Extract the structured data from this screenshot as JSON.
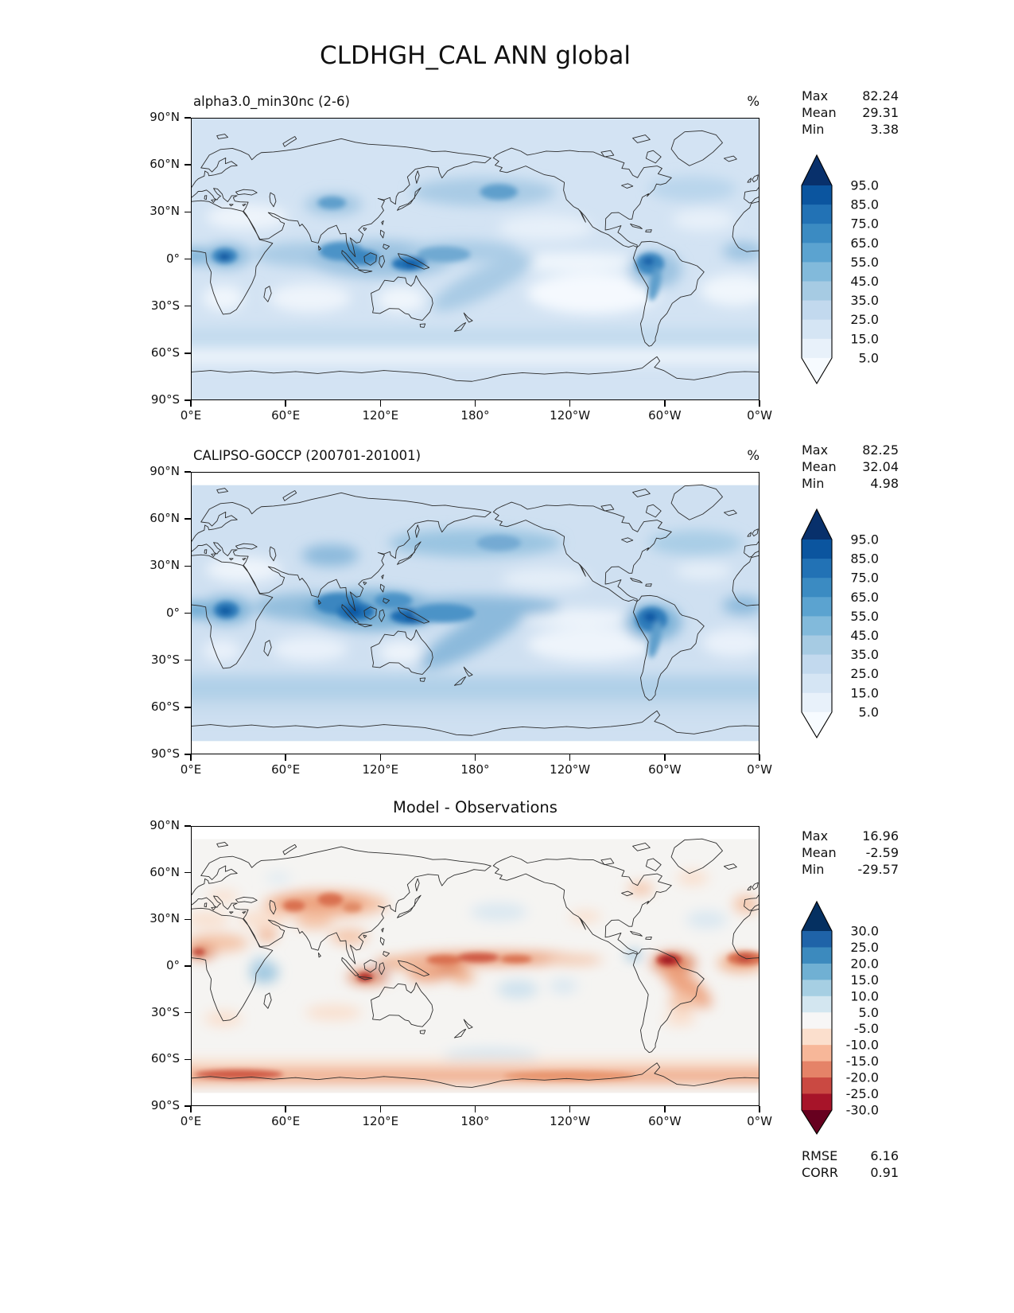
{
  "page_title": "CLDHGH_CAL ANN global",
  "axes": {
    "x_ticks": [
      "0°E",
      "60°E",
      "120°E",
      "180°",
      "120°W",
      "60°W",
      "0°W"
    ],
    "y_ticks": [
      "90°N",
      "60°N",
      "30°N",
      "0°",
      "30°S",
      "60°S",
      "90°S"
    ]
  },
  "panels": [
    {
      "key": "model",
      "title": "alpha3.0_min30nc (2-6)",
      "unit": "%",
      "stats": [
        [
          "Max",
          "82.24"
        ],
        [
          "Mean",
          "29.31"
        ],
        [
          "Min",
          "3.38"
        ]
      ],
      "colorbar": {
        "tick_labels": [
          "95.0",
          "85.0",
          "75.0",
          "65.0",
          "55.0",
          "45.0",
          "35.0",
          "25.0",
          "15.0",
          "5.0"
        ],
        "colors_top_to_bottom": [
          "#08306b",
          "#0b559f",
          "#2272b5",
          "#3b8bc2",
          "#5ba3d0",
          "#82badb",
          "#a6cbe3",
          "#c2d9ee",
          "#d5e5f4",
          "#e8f1fa",
          "#f7fbff"
        ]
      }
    },
    {
      "key": "obs",
      "title": "CALIPSO-GOCCP (200701-201001)",
      "unit": "%",
      "stats": [
        [
          "Max",
          "82.25"
        ],
        [
          "Mean",
          "32.04"
        ],
        [
          "Min",
          "4.98"
        ]
      ],
      "colorbar": {
        "tick_labels": [
          "95.0",
          "85.0",
          "75.0",
          "65.0",
          "55.0",
          "45.0",
          "35.0",
          "25.0",
          "15.0",
          "5.0"
        ],
        "colors_top_to_bottom": [
          "#08306b",
          "#0b559f",
          "#2272b5",
          "#3b8bc2",
          "#5ba3d0",
          "#82badb",
          "#a6cbe3",
          "#c2d9ee",
          "#d5e5f4",
          "#e8f1fa",
          "#f7fbff"
        ]
      }
    },
    {
      "key": "diff",
      "title": "Model - Observations",
      "unit": "",
      "stats": [
        [
          "Max",
          "16.96"
        ],
        [
          "Mean",
          "-2.59"
        ],
        [
          "Min",
          "-29.57"
        ]
      ],
      "extra_stats": [
        [
          "RMSE",
          "6.16"
        ],
        [
          "CORR",
          "0.91"
        ]
      ],
      "colorbar": {
        "tick_labels": [
          "30.0",
          "25.0",
          "20.0",
          "15.0",
          "10.0",
          "5.0",
          "-5.0",
          "-10.0",
          "-15.0",
          "-20.0",
          "-25.0",
          "-30.0"
        ],
        "colors_top_to_bottom": [
          "#053061",
          "#1f63a8",
          "#3c8abe",
          "#70b0d3",
          "#a6cfe3",
          "#d3e6f0",
          "#f7f6f6",
          "#fbdfcd",
          "#f7b799",
          "#e58368",
          "#ca4942",
          "#a71429",
          "#67001f"
        ]
      }
    }
  ],
  "chart_data": {
    "type": "heatmap",
    "title": "CLDHGH_CAL ANN global",
    "variable": "CLDHGH_CAL",
    "season": "ANN",
    "region": "global",
    "projection": "equirectangular, longitude 0°E to 0°W (0-360), latitude 90°N to 90°S",
    "x_tick_labels": [
      "0°E",
      "60°E",
      "120°E",
      "180°",
      "120°W",
      "60°W",
      "0°W"
    ],
    "y_tick_labels": [
      "90°N",
      "60°N",
      "30°N",
      "0°",
      "30°S",
      "60°S",
      "90°S"
    ],
    "panels": [
      {
        "title": "alpha3.0_min30nc (2-6)",
        "role": "model",
        "units": "%",
        "max": 82.24,
        "mean": 29.31,
        "min": 3.38,
        "contour_levels": [
          5,
          15,
          25,
          35,
          45,
          55,
          65,
          75,
          85,
          95
        ],
        "colormap": "Blues",
        "legend_position": "right"
      },
      {
        "title": "CALIPSO-GOCCP (200701-201001)",
        "role": "observations",
        "units": "%",
        "max": 82.25,
        "mean": 32.04,
        "min": 4.98,
        "contour_levels": [
          5,
          15,
          25,
          35,
          45,
          55,
          65,
          75,
          85,
          95
        ],
        "colormap": "Blues",
        "legend_position": "right"
      },
      {
        "title": "Model - Observations",
        "role": "difference",
        "units": "%",
        "max": 16.96,
        "mean": -2.59,
        "min": -29.57,
        "rmse": 6.16,
        "corr": 0.91,
        "contour_levels": [
          -30,
          -25,
          -20,
          -15,
          -10,
          -5,
          5,
          10,
          15,
          20,
          25,
          30
        ],
        "colormap": "RdBu",
        "legend_position": "right"
      }
    ]
  }
}
